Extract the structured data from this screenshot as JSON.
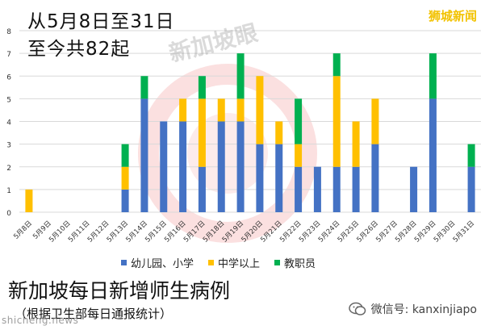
{
  "header": {
    "title_line1": "从5月8日至31日",
    "title_line2": "至今共82起",
    "brand": "狮城新闻"
  },
  "footer": {
    "title": "新加坡每日新增师生病例",
    "subtitle": "（根据卫生部每日通报统计）",
    "source": "shicheng.news",
    "wechat": "微信号: kanxinjiapo"
  },
  "watermark": {
    "text": "新加坡眼"
  },
  "colors": {
    "primary": "#4472c4",
    "secondary": "#ffc000",
    "staff": "#00b050",
    "watermark_ring": "#e63c3c"
  },
  "chart_data": {
    "type": "bar",
    "stacked": true,
    "categories": [
      "5月8日",
      "5月9日",
      "5月10日",
      "5月11日",
      "5月12日",
      "5月13日",
      "5月14日",
      "5月15日",
      "5月16日",
      "5月17日",
      "5月18日",
      "5月19日",
      "5月20日",
      "5月21日",
      "5月22日",
      "5月23日",
      "5月24日",
      "5月25日",
      "5月26日",
      "5月27日",
      "5月28日",
      "5月29日",
      "5月30日",
      "5月31日"
    ],
    "series": [
      {
        "name": "幼儿园、小学",
        "color": "#4472c4",
        "values": [
          0,
          0,
          0,
          0,
          0,
          1,
          5,
          4,
          4,
          2,
          4,
          4,
          3,
          3,
          2,
          2,
          2,
          2,
          3,
          0,
          2,
          5,
          0,
          2
        ]
      },
      {
        "name": "中学以上",
        "color": "#ffc000",
        "values": [
          1,
          0,
          0,
          0,
          0,
          1,
          0,
          0,
          1,
          3,
          1,
          1,
          3,
          1,
          1,
          0,
          4,
          2,
          2,
          0,
          0,
          0,
          0,
          0
        ]
      },
      {
        "name": "教职员",
        "color": "#00b050",
        "values": [
          0,
          0,
          0,
          0,
          0,
          1,
          1,
          0,
          0,
          1,
          0,
          2,
          0,
          0,
          2,
          0,
          1,
          0,
          0,
          0,
          0,
          2,
          0,
          1
        ]
      }
    ],
    "ylim": [
      0,
      8
    ],
    "yticks": [
      "0",
      "1",
      "2",
      "3",
      "4",
      "5",
      "6",
      "7",
      "8"
    ],
    "grid": true,
    "legend_position": "bottom"
  }
}
